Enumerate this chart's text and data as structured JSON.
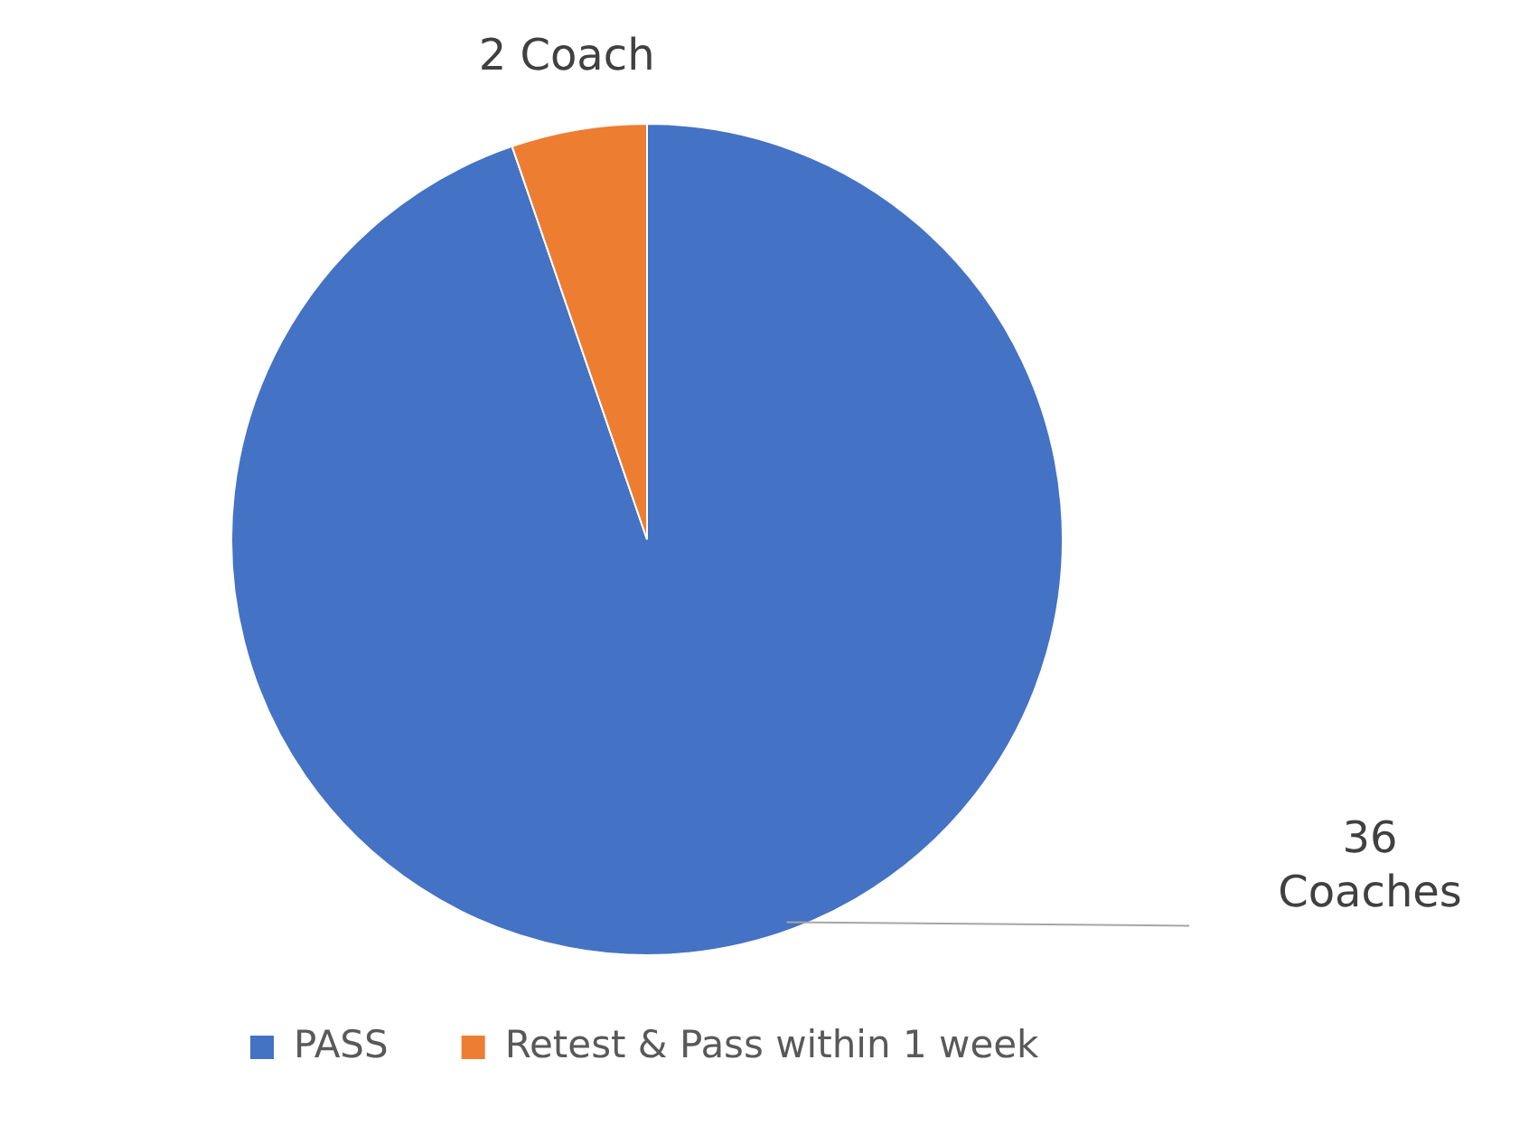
{
  "chart_data": {
    "type": "pie",
    "categories": [
      "PASS",
      "Retest & Pass within 1 week"
    ],
    "values": [
      36,
      2
    ],
    "colors": [
      "#4472c4",
      "#ed7d31"
    ],
    "value_labels": [
      "36 Coaches",
      "2 Coach"
    ],
    "legend": "bottom left"
  }
}
